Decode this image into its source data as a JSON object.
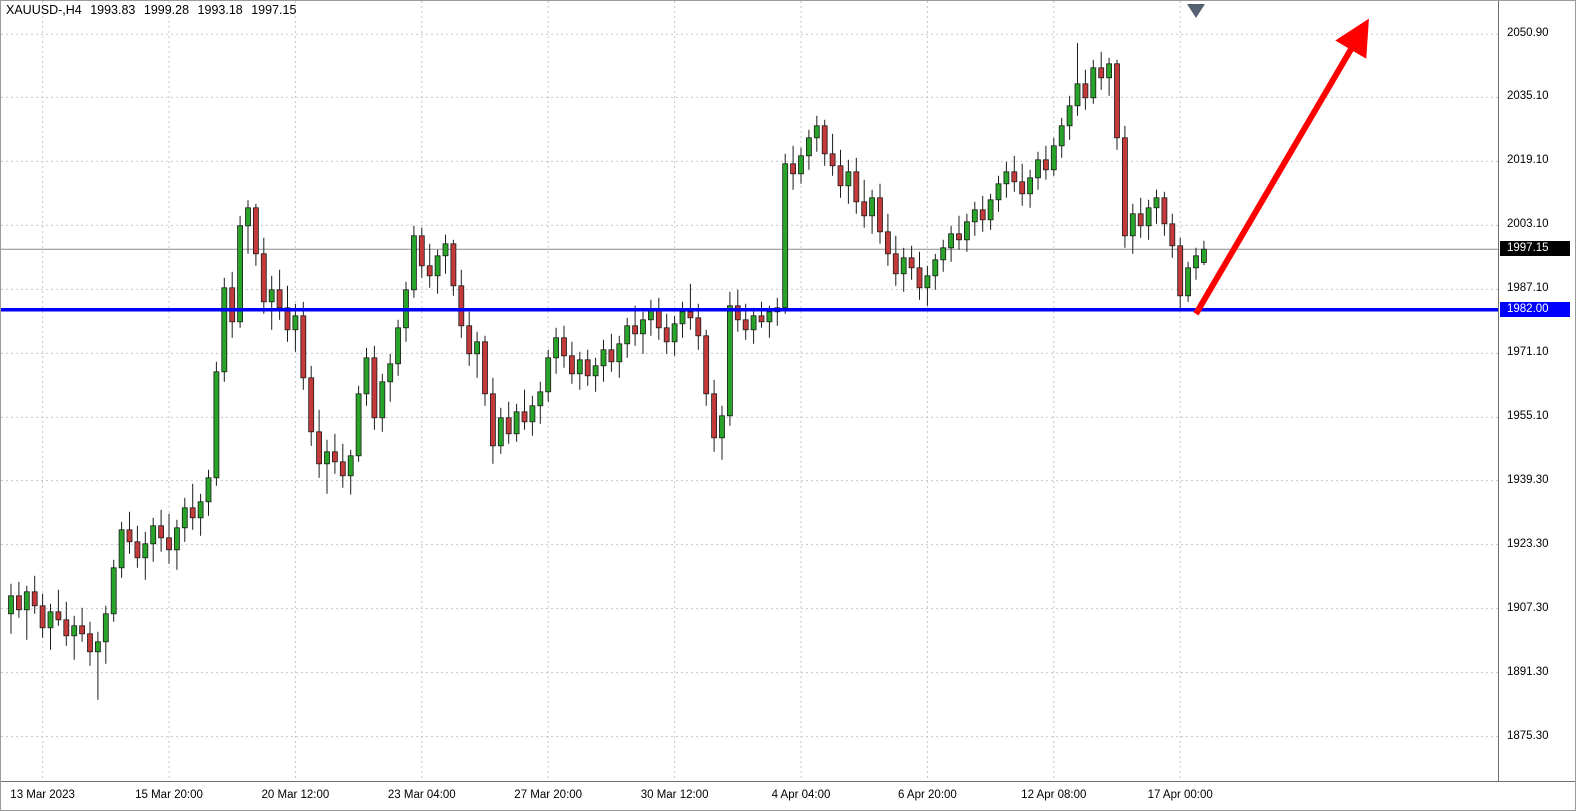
{
  "header": {
    "symbol_period": "XAUUSD-,H4",
    "open": "1993.83",
    "high": "1999.28",
    "low": "1993.18",
    "close": "1997.15"
  },
  "chart_data": {
    "type": "candlestick",
    "symbol": "XAUUSD",
    "timeframe": "H4",
    "title": "XAUUSD-,H4 1993.83 1999.28 1993.18 1997.15",
    "grid": true,
    "legend_position": "none",
    "price_range": {
      "max": 2059.2,
      "min": 1864.2
    },
    "current_price": 1997.15,
    "support_line": {
      "price": 1982.0,
      "label": "1982.00",
      "color": "#0000ff"
    },
    "trend_arrow": {
      "from": {
        "index": 150,
        "price": 1981.0
      },
      "to": {
        "index": 171.5,
        "price": 2053.5
      }
    },
    "shift_marker": {
      "index": 150
    },
    "colors": {
      "bull": "#28a428",
      "bear": "#c43a3a",
      "outline": "#1c1c1c",
      "grid": "#c6c6c6",
      "current_line": "#8a8a8a",
      "support": "#0000ff",
      "arrow": "#ff0000",
      "shift_marker": "#566273",
      "current_tag_bg": "#000000",
      "axis_text": "#000000"
    },
    "y_ticks": [
      2050.9,
      2035.1,
      2019.1,
      2003.1,
      1987.1,
      1971.1,
      1955.1,
      1939.3,
      1923.3,
      1907.3,
      1891.3,
      1875.3
    ],
    "x_ticks": [
      {
        "label": "13 Mar 2023",
        "index": 4
      },
      {
        "label": "15 Mar 20:00",
        "index": 20
      },
      {
        "label": "20 Mar 12:00",
        "index": 36
      },
      {
        "label": "23 Mar 04:00",
        "index": 52
      },
      {
        "label": "27 Mar 20:00",
        "index": 68
      },
      {
        "label": "30 Mar 12:00",
        "index": 84
      },
      {
        "label": "4 Apr 04:00",
        "index": 100
      },
      {
        "label": "6 Apr 20:00",
        "index": 116
      },
      {
        "label": "12 Apr 08:00",
        "index": 132
      },
      {
        "label": "17 Apr 00:00",
        "index": 148
      }
    ],
    "candles": [
      [
        1906.0,
        1913.5,
        1901.0,
        1910.5
      ],
      [
        1910.5,
        1914.0,
        1905.0,
        1907.0
      ],
      [
        1907.0,
        1913.0,
        1899.5,
        1911.5
      ],
      [
        1911.5,
        1915.5,
        1906.0,
        1908.0
      ],
      [
        1908.0,
        1911.0,
        1900.0,
        1902.5
      ],
      [
        1902.5,
        1908.5,
        1897.0,
        1906.5
      ],
      [
        1906.5,
        1912.0,
        1903.0,
        1904.5
      ],
      [
        1904.5,
        1909.0,
        1898.0,
        1900.5
      ],
      [
        1900.5,
        1905.5,
        1894.5,
        1903.0
      ],
      [
        1903.0,
        1907.5,
        1899.0,
        1901.0
      ],
      [
        1901.0,
        1904.0,
        1893.0,
        1896.5
      ],
      [
        1896.5,
        1901.5,
        1884.5,
        1899.0
      ],
      [
        1899.0,
        1908.0,
        1893.5,
        1906.0
      ],
      [
        1906.0,
        1919.5,
        1904.0,
        1917.5
      ],
      [
        1917.5,
        1929.0,
        1915.0,
        1927.0
      ],
      [
        1927.0,
        1931.5,
        1921.0,
        1924.0
      ],
      [
        1924.0,
        1928.0,
        1917.5,
        1920.0
      ],
      [
        1920.0,
        1926.5,
        1914.5,
        1923.5
      ],
      [
        1923.5,
        1930.0,
        1919.0,
        1928.0
      ],
      [
        1928.0,
        1932.0,
        1921.5,
        1925.0
      ],
      [
        1925.0,
        1931.0,
        1918.5,
        1922.0
      ],
      [
        1922.0,
        1929.5,
        1917.0,
        1927.5
      ],
      [
        1927.5,
        1935.0,
        1924.0,
        1932.5
      ],
      [
        1932.5,
        1938.5,
        1927.0,
        1930.0
      ],
      [
        1930.0,
        1936.0,
        1925.5,
        1934.0
      ],
      [
        1934.0,
        1942.0,
        1930.5,
        1940.0
      ],
      [
        1940.0,
        1969.0,
        1938.0,
        1966.5
      ],
      [
        1966.5,
        1990.0,
        1964.0,
        1987.5
      ],
      [
        1987.5,
        1991.5,
        1975.0,
        1979.0
      ],
      [
        1979.0,
        2005.5,
        1977.5,
        2003.0
      ],
      [
        2003.0,
        2009.4,
        1996.0,
        2007.5
      ],
      [
        2007.5,
        2008.5,
        1993.0,
        1996.0
      ],
      [
        1996.0,
        2000.0,
        1981.0,
        1984.0
      ],
      [
        1984.0,
        1990.5,
        1977.0,
        1987.0
      ],
      [
        1987.0,
        1992.0,
        1979.5,
        1982.5
      ],
      [
        1982.5,
        1988.0,
        1974.0,
        1977.0
      ],
      [
        1977.0,
        1983.5,
        1971.5,
        1980.5
      ],
      [
        1980.5,
        1984.0,
        1962.0,
        1965.0
      ],
      [
        1965.0,
        1968.0,
        1948.0,
        1951.5
      ],
      [
        1951.5,
        1957.0,
        1940.0,
        1943.5
      ],
      [
        1943.5,
        1949.5,
        1936.0,
        1946.5
      ],
      [
        1946.5,
        1951.0,
        1941.0,
        1944.0
      ],
      [
        1944.0,
        1948.5,
        1937.5,
        1940.5
      ],
      [
        1940.5,
        1947.0,
        1935.8,
        1945.5
      ],
      [
        1945.5,
        1963.0,
        1944.0,
        1961.0
      ],
      [
        1961.0,
        1972.5,
        1958.0,
        1970.0
      ],
      [
        1970.0,
        1973.0,
        1952.0,
        1955.0
      ],
      [
        1955.0,
        1966.0,
        1951.5,
        1964.0
      ],
      [
        1964.0,
        1971.0,
        1959.0,
        1968.5
      ],
      [
        1968.5,
        1979.5,
        1965.5,
        1977.5
      ],
      [
        1977.5,
        1989.0,
        1974.0,
        1987.0
      ],
      [
        1987.0,
        2003.0,
        1985.0,
        2000.5
      ],
      [
        2000.5,
        2002.5,
        1990.0,
        1993.0
      ],
      [
        1993.0,
        1998.5,
        1987.5,
        1990.5
      ],
      [
        1990.5,
        1997.0,
        1986.0,
        1995.5
      ],
      [
        1995.5,
        2000.8,
        1991.0,
        1998.5
      ],
      [
        1998.5,
        1999.5,
        1985.5,
        1988.0
      ],
      [
        1988.0,
        1992.0,
        1975.0,
        1978.0
      ],
      [
        1978.0,
        1981.5,
        1968.0,
        1971.0
      ],
      [
        1971.0,
        1976.5,
        1965.0,
        1974.0
      ],
      [
        1974.0,
        1975.5,
        1958.0,
        1961.0
      ],
      [
        1961.0,
        1965.0,
        1943.5,
        1948.0
      ],
      [
        1948.0,
        1957.5,
        1946.0,
        1955.0
      ],
      [
        1955.0,
        1959.0,
        1948.5,
        1951.0
      ],
      [
        1951.0,
        1958.5,
        1949.0,
        1956.5
      ],
      [
        1956.5,
        1962.0,
        1952.0,
        1954.0
      ],
      [
        1954.0,
        1960.5,
        1950.5,
        1958.0
      ],
      [
        1958.0,
        1964.0,
        1953.5,
        1961.5
      ],
      [
        1961.5,
        1972.0,
        1959.0,
        1970.0
      ],
      [
        1970.0,
        1977.5,
        1966.0,
        1975.0
      ],
      [
        1975.0,
        1978.0,
        1967.5,
        1970.5
      ],
      [
        1970.5,
        1974.0,
        1963.5,
        1966.0
      ],
      [
        1966.0,
        1971.5,
        1962.0,
        1969.5
      ],
      [
        1969.5,
        1972.0,
        1963.0,
        1965.5
      ],
      [
        1965.5,
        1970.0,
        1961.5,
        1968.0
      ],
      [
        1968.0,
        1974.5,
        1964.0,
        1972.0
      ],
      [
        1972.0,
        1976.0,
        1966.5,
        1969.0
      ],
      [
        1969.0,
        1975.5,
        1965.0,
        1973.5
      ],
      [
        1973.5,
        1980.0,
        1970.0,
        1978.0
      ],
      [
        1978.0,
        1983.0,
        1973.0,
        1976.0
      ],
      [
        1976.0,
        1981.5,
        1971.0,
        1979.5
      ],
      [
        1979.5,
        1984.5,
        1975.5,
        1982.0
      ],
      [
        1982.0,
        1985.0,
        1974.5,
        1977.5
      ],
      [
        1977.5,
        1981.0,
        1971.0,
        1974.0
      ],
      [
        1974.0,
        1980.5,
        1970.5,
        1978.5
      ],
      [
        1978.5,
        1984.0,
        1975.0,
        1981.5
      ],
      [
        1981.5,
        1988.5,
        1977.0,
        1980.0
      ],
      [
        1980.0,
        1983.5,
        1972.0,
        1975.5
      ],
      [
        1975.5,
        1977.0,
        1958.0,
        1961.0
      ],
      [
        1961.0,
        1964.5,
        1946.5,
        1950.0
      ],
      [
        1950.0,
        1958.0,
        1944.5,
        1955.5
      ],
      [
        1955.5,
        1986.5,
        1953.0,
        1983.0
      ],
      [
        1983.0,
        1987.0,
        1976.5,
        1979.5
      ],
      [
        1979.5,
        1983.5,
        1974.5,
        1977.0
      ],
      [
        1977.0,
        1982.5,
        1973.5,
        1980.5
      ],
      [
        1980.5,
        1984.0,
        1977.5,
        1979.0
      ],
      [
        1979.0,
        1983.0,
        1975.0,
        1981.5
      ],
      [
        1981.5,
        1985.0,
        1978.0,
        1982.5
      ],
      [
        1982.5,
        2021.0,
        1981.0,
        2018.5
      ],
      [
        2018.5,
        2023.0,
        2012.0,
        2016.0
      ],
      [
        2016.0,
        2022.5,
        2013.5,
        2020.5
      ],
      [
        2020.5,
        2027.0,
        2017.0,
        2025.0
      ],
      [
        2025.0,
        2030.5,
        2021.5,
        2028.0
      ],
      [
        2028.0,
        2029.5,
        2018.0,
        2021.0
      ],
      [
        2021.0,
        2026.0,
        2015.5,
        2018.0
      ],
      [
        2018.0,
        2022.0,
        2010.0,
        2013.0
      ],
      [
        2013.0,
        2019.5,
        2008.5,
        2016.5
      ],
      [
        2016.5,
        2020.0,
        2006.0,
        2009.0
      ],
      [
        2009.0,
        2014.5,
        2002.5,
        2005.5
      ],
      [
        2005.5,
        2012.0,
        2001.0,
        2010.0
      ],
      [
        2010.0,
        2013.5,
        1998.5,
        2001.5
      ],
      [
        2001.5,
        2006.0,
        1993.0,
        1996.0
      ],
      [
        1996.0,
        2000.5,
        1988.0,
        1991.0
      ],
      [
        1991.0,
        1997.5,
        1986.5,
        1995.0
      ],
      [
        1995.0,
        1998.0,
        1989.5,
        1992.5
      ],
      [
        1992.5,
        1996.5,
        1984.5,
        1987.5
      ],
      [
        1987.5,
        1993.0,
        1983.0,
        1990.5
      ],
      [
        1990.5,
        1996.0,
        1987.0,
        1994.5
      ],
      [
        1994.5,
        1999.5,
        1991.5,
        1997.5
      ],
      [
        1997.5,
        2003.0,
        1994.0,
        2001.0
      ],
      [
        2001.0,
        2005.5,
        1997.0,
        1999.5
      ],
      [
        1999.5,
        2006.0,
        1996.5,
        2004.0
      ],
      [
        2004.0,
        2009.0,
        2000.5,
        2007.0
      ],
      [
        2007.0,
        2010.5,
        2001.5,
        2004.5
      ],
      [
        2004.5,
        2011.0,
        2002.0,
        2009.5
      ],
      [
        2009.5,
        2015.5,
        2006.5,
        2013.5
      ],
      [
        2013.5,
        2019.0,
        2010.0,
        2016.5
      ],
      [
        2016.5,
        2020.5,
        2011.5,
        2014.0
      ],
      [
        2014.0,
        2018.5,
        2008.0,
        2011.0
      ],
      [
        2011.0,
        2017.0,
        2007.5,
        2015.0
      ],
      [
        2015.0,
        2021.5,
        2012.0,
        2019.5
      ],
      [
        2019.5,
        2023.0,
        2014.5,
        2017.0
      ],
      [
        2017.0,
        2025.0,
        2015.5,
        2023.0
      ],
      [
        2023.0,
        2030.0,
        2020.0,
        2028.0
      ],
      [
        2028.0,
        2035.5,
        2024.5,
        2033.0
      ],
      [
        2033.0,
        2048.7,
        2030.5,
        2038.5
      ],
      [
        2038.5,
        2042.0,
        2032.0,
        2035.0
      ],
      [
        2035.0,
        2044.5,
        2033.5,
        2042.5
      ],
      [
        2042.5,
        2046.5,
        2037.0,
        2040.0
      ],
      [
        2040.0,
        2045.0,
        2035.5,
        2043.5
      ],
      [
        2043.5,
        2044.5,
        2022.0,
        2025.0
      ],
      [
        2025.0,
        2028.0,
        1997.5,
        2000.5
      ],
      [
        2000.5,
        2008.5,
        1996.0,
        2006.0
      ],
      [
        2006.0,
        2010.0,
        2000.0,
        2003.0
      ],
      [
        2003.0,
        2009.5,
        1999.5,
        2007.5
      ],
      [
        2007.5,
        2012.0,
        2003.5,
        2010.0
      ],
      [
        2010.0,
        2011.5,
        2000.5,
        2003.5
      ],
      [
        2003.5,
        2006.0,
        1995.0,
        1998.0
      ],
      [
        1998.0,
        2000.0,
        1982.2,
        1985.5
      ],
      [
        1985.5,
        1994.0,
        1984.0,
        1992.5
      ],
      [
        1992.5,
        1997.5,
        1989.5,
        1995.5
      ],
      [
        1993.83,
        1999.28,
        1993.18,
        1997.15
      ]
    ]
  }
}
